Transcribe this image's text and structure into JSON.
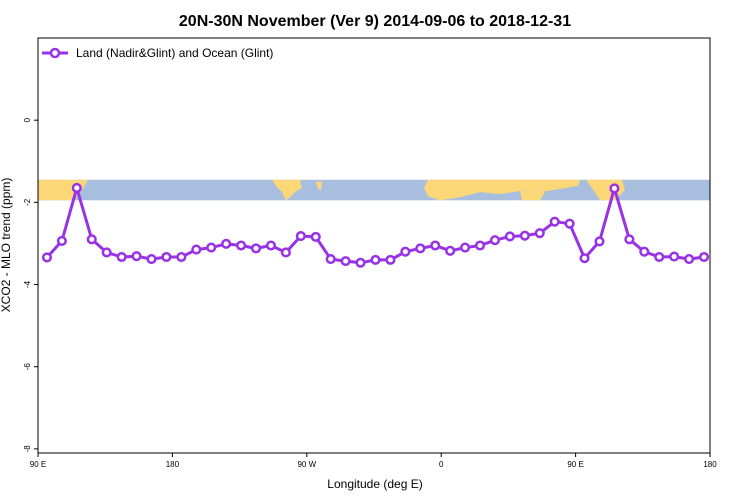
{
  "chart_data": {
    "type": "line",
    "title": "20N-30N November (Ver 9)   2014-09-06 to 2018-12-31",
    "xlabel": "Longitude (deg E)",
    "ylabel": "XCO2 - MLO trend (ppm)",
    "xlim": [
      90,
      540
    ],
    "ylim": [
      -8.1,
      2.0
    ],
    "x_ticks": [
      {
        "value": 90,
        "label": "90 E"
      },
      {
        "value": 180,
        "label": "180"
      },
      {
        "value": 270,
        "label": "90 W"
      },
      {
        "value": 360,
        "label": "0"
      },
      {
        "value": 450,
        "label": "90 E"
      },
      {
        "value": 540,
        "label": "180"
      }
    ],
    "y_ticks": [
      {
        "value": 0,
        "label": "0"
      },
      {
        "value": -2,
        "label": "-2"
      },
      {
        "value": -4,
        "label": "-4"
      },
      {
        "value": -6,
        "label": "-6"
      },
      {
        "value": -8,
        "label": "-8"
      }
    ],
    "legend": {
      "position": "top-left"
    },
    "map_strip": {
      "y_range": [
        -1.45,
        -1.95
      ],
      "colors": {
        "ocean": "#a7bedf",
        "land": "#fcd777"
      }
    },
    "series": [
      {
        "name": "Land (Nadir&Glint) and Ocean (Glint)",
        "color": "#9932e6",
        "x": [
          96,
          106,
          116,
          126,
          136,
          146,
          156,
          166,
          176,
          186,
          196,
          206,
          216,
          226,
          236,
          246,
          256,
          266,
          276,
          286,
          296,
          306,
          316,
          326,
          336,
          346,
          356,
          366,
          376,
          386,
          396,
          406,
          416,
          426,
          436,
          446,
          456,
          466,
          476,
          486,
          496,
          506,
          516,
          526,
          536
        ],
        "values": [
          -3.34,
          -2.94,
          -1.65,
          -2.9,
          -3.22,
          -3.33,
          -3.31,
          -3.38,
          -3.33,
          -3.33,
          -3.15,
          -3.1,
          -3.01,
          -3.05,
          -3.12,
          -3.05,
          -3.22,
          -2.82,
          -2.84,
          -3.38,
          -3.43,
          -3.47,
          -3.4,
          -3.4,
          -3.2,
          -3.12,
          -3.05,
          -3.18,
          -3.1,
          -3.05,
          -2.92,
          -2.83,
          -2.81,
          -2.75,
          -2.47,
          -2.52,
          -3.36,
          -2.95,
          -1.66,
          -2.9,
          -3.2,
          -3.33,
          -3.32,
          -3.38,
          -3.33
        ]
      }
    ]
  }
}
